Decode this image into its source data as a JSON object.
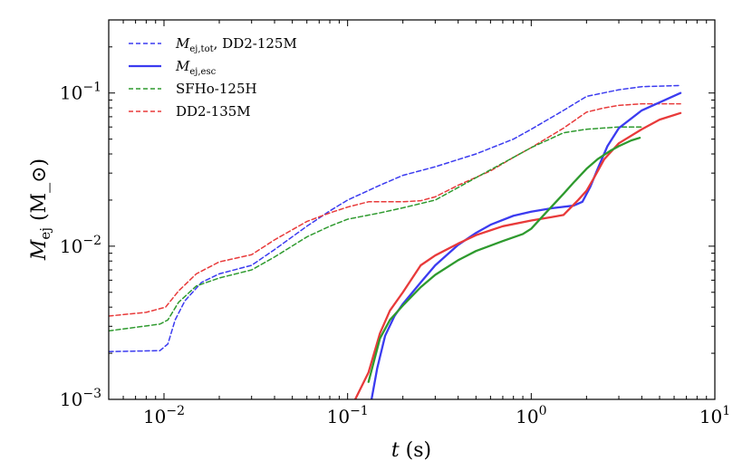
{
  "chart_data": {
    "type": "line",
    "title": "",
    "xlabel": "t (s)",
    "ylabel": "M_ej (M_⊙)",
    "x_scale": "log",
    "y_scale": "log",
    "xlim": [
      0.005,
      10
    ],
    "ylim": [
      0.001,
      0.3
    ],
    "x_ticks": [
      {
        "value": 0.01,
        "base": "10",
        "exp": "−2"
      },
      {
        "value": 0.1,
        "base": "10",
        "exp": "−1"
      },
      {
        "value": 1,
        "base": "10",
        "exp": "0"
      },
      {
        "value": 10,
        "base": "10",
        "exp": "1"
      }
    ],
    "y_ticks": [
      {
        "value": 0.001,
        "base": "10",
        "exp": "−3"
      },
      {
        "value": 0.01,
        "base": "10",
        "exp": "−2"
      },
      {
        "value": 0.1,
        "base": "10",
        "exp": "−1"
      }
    ],
    "grid": false,
    "legend_position": "top-left",
    "legend": [
      {
        "label_main": "M",
        "label_sub": "ej,tot",
        "label_rest": ", DD2-125M",
        "color": "#3b3bf0",
        "dash": true
      },
      {
        "label_main": "M",
        "label_sub": "ej,esc",
        "label_rest": "",
        "color": "#3b3bf0",
        "dash": false
      },
      {
        "label_main": "",
        "label_sub": "",
        "label_rest": "SFHo-125H",
        "color": "#2e9a2e",
        "dash": true
      },
      {
        "label_main": "",
        "label_sub": "",
        "label_rest": "DD2-135M",
        "color": "#e83a3a",
        "dash": true
      }
    ],
    "series": [
      {
        "color": "#3b3bf0",
        "dash": true,
        "x": [
          0.005,
          0.0095,
          0.0105,
          0.0115,
          0.013,
          0.016,
          0.02,
          0.03,
          0.04,
          0.06,
          0.08,
          0.1,
          0.15,
          0.2,
          0.3,
          0.5,
          0.8,
          1.0,
          1.5,
          2.0,
          3.0,
          4.0,
          6.5
        ],
        "y": [
          0.00205,
          0.00208,
          0.0023,
          0.0033,
          0.0044,
          0.0058,
          0.0066,
          0.0075,
          0.0095,
          0.0135,
          0.017,
          0.02,
          0.025,
          0.029,
          0.033,
          0.04,
          0.05,
          0.058,
          0.077,
          0.095,
          0.105,
          0.11,
          0.112
        ]
      },
      {
        "color": "#e83a3a",
        "dash": true,
        "x": [
          0.005,
          0.008,
          0.0102,
          0.012,
          0.015,
          0.02,
          0.03,
          0.04,
          0.06,
          0.08,
          0.1,
          0.13,
          0.2,
          0.25,
          0.3,
          0.4,
          0.6,
          0.8,
          1.0,
          1.5,
          2.0,
          2.5,
          3.0,
          4.0,
          6.5
        ],
        "y": [
          0.0035,
          0.0037,
          0.004,
          0.0051,
          0.0066,
          0.0079,
          0.0088,
          0.011,
          0.0145,
          0.0165,
          0.018,
          0.0195,
          0.0195,
          0.0198,
          0.021,
          0.025,
          0.031,
          0.038,
          0.044,
          0.059,
          0.075,
          0.08,
          0.083,
          0.085,
          0.085
        ]
      },
      {
        "color": "#2e9a2e",
        "dash": true,
        "x": [
          0.005,
          0.0095,
          0.0105,
          0.012,
          0.015,
          0.02,
          0.03,
          0.04,
          0.06,
          0.08,
          0.1,
          0.15,
          0.2,
          0.3,
          0.5,
          0.8,
          1.0,
          1.5,
          2.0,
          3.0,
          4.0
        ],
        "y": [
          0.0028,
          0.0031,
          0.0033,
          0.0043,
          0.0055,
          0.0062,
          0.007,
          0.0085,
          0.0115,
          0.0135,
          0.015,
          0.0165,
          0.0178,
          0.02,
          0.028,
          0.038,
          0.044,
          0.055,
          0.058,
          0.06,
          0.06
        ]
      },
      {
        "color": "#3b3bf0",
        "dash": false,
        "x": [
          0.135,
          0.145,
          0.16,
          0.18,
          0.2,
          0.25,
          0.3,
          0.4,
          0.5,
          0.6,
          0.8,
          1.0,
          1.3,
          1.7,
          1.9,
          2.1,
          2.3,
          2.6,
          3.0,
          4.0,
          6.5
        ],
        "y": [
          0.001,
          0.0016,
          0.0026,
          0.0035,
          0.0042,
          0.0058,
          0.0075,
          0.0102,
          0.0122,
          0.0138,
          0.0158,
          0.0168,
          0.0177,
          0.0184,
          0.0195,
          0.0245,
          0.032,
          0.045,
          0.059,
          0.077,
          0.1
        ]
      },
      {
        "color": "#e83a3a",
        "dash": false,
        "x": [
          0.11,
          0.13,
          0.15,
          0.17,
          0.2,
          0.25,
          0.3,
          0.4,
          0.5,
          0.7,
          1.0,
          1.3,
          1.5,
          1.8,
          2.0,
          2.2,
          2.5,
          3.0,
          4.0,
          5.0,
          6.5
        ],
        "y": [
          0.001,
          0.0015,
          0.0027,
          0.0038,
          0.005,
          0.0075,
          0.0087,
          0.0104,
          0.0118,
          0.0135,
          0.0147,
          0.0155,
          0.016,
          0.02,
          0.023,
          0.028,
          0.037,
          0.047,
          0.058,
          0.067,
          0.074
        ]
      },
      {
        "color": "#2e9a2e",
        "dash": false,
        "x": [
          0.13,
          0.15,
          0.17,
          0.2,
          0.25,
          0.3,
          0.4,
          0.5,
          0.7,
          0.9,
          1.0,
          1.2,
          1.5,
          1.7,
          2.0,
          2.3,
          2.7,
          3.0,
          3.5,
          3.9
        ],
        "y": [
          0.0013,
          0.0025,
          0.0033,
          0.0041,
          0.0054,
          0.0065,
          0.0081,
          0.0093,
          0.0108,
          0.012,
          0.013,
          0.0165,
          0.022,
          0.026,
          0.032,
          0.037,
          0.042,
          0.045,
          0.049,
          0.051
        ]
      }
    ]
  }
}
